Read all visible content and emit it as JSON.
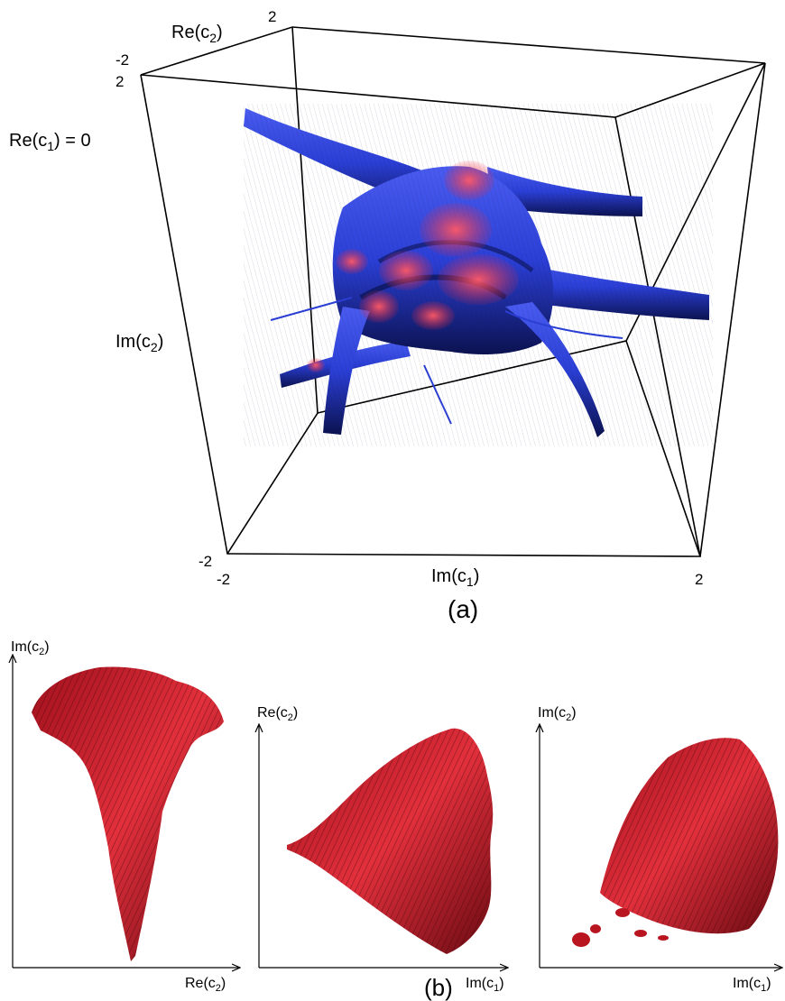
{
  "panel_a": {
    "caption": "(a)",
    "slice_label": {
      "text": "Re(c",
      "sub": "1",
      "tail": ") = 0"
    },
    "axis_re_c2": {
      "text": "Re(c",
      "sub": "2",
      "tail": ")"
    },
    "axis_im_c2": {
      "text": "Im(c",
      "sub": "2",
      "tail": ")"
    },
    "axis_im_c1": {
      "text": "Im(c",
      "sub": "1",
      "tail": ")"
    },
    "ticks": {
      "back_top": "2",
      "re_min": "-2",
      "im_c2_max": "2",
      "im_c2_min": "-2",
      "im_c1_min": "-2",
      "im_c1_max": "2"
    },
    "colors": {
      "body": "#2b3fd6",
      "body_dark": "#0b1250",
      "highlight": "#e8283c"
    }
  },
  "panel_b": {
    "caption": "(b)",
    "views": [
      {
        "y_axis": {
          "text": "Im(c",
          "sub": "2",
          "tail": ")"
        },
        "x_axis": {
          "text": "Re(c",
          "sub": "2",
          "tail": ")"
        }
      },
      {
        "y_axis": {
          "text": "Re(c",
          "sub": "2",
          "tail": ")"
        },
        "x_axis": {
          "text": "Im(c",
          "sub": "1",
          "tail": ")"
        }
      },
      {
        "y_axis": {
          "text": "Im(c",
          "sub": "2",
          "tail": ")"
        },
        "x_axis": {
          "text": "Im(c",
          "sub": "1",
          "tail": ")"
        }
      }
    ],
    "colors": {
      "body": "#d3202c",
      "body_dark": "#4a070c"
    }
  }
}
